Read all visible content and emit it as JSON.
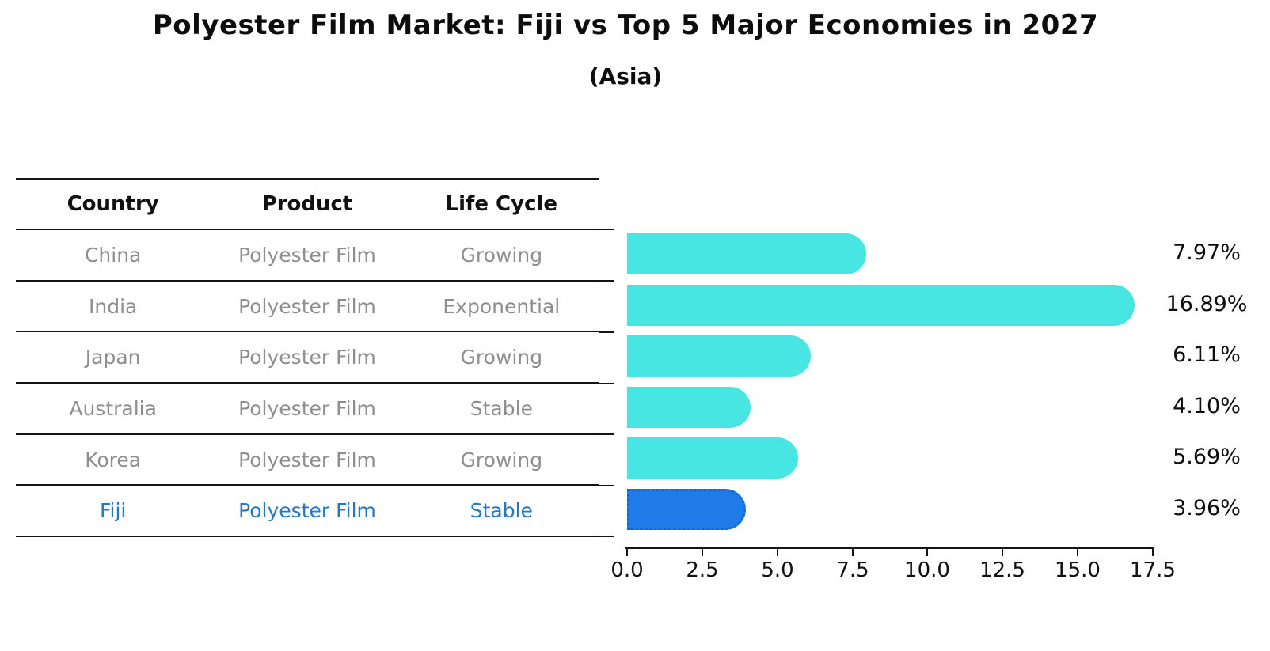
{
  "title": "Polyester Film Market: Fiji vs Top 5 Major Economies in 2027",
  "subtitle": "(Asia)",
  "table": {
    "headers": [
      "Country",
      "Product",
      "Life Cycle"
    ],
    "rows": [
      {
        "country": "China",
        "product": "Polyester Film",
        "life_cycle": "Growing"
      },
      {
        "country": "India",
        "product": "Polyester Film",
        "life_cycle": "Exponential"
      },
      {
        "country": "Japan",
        "product": "Polyester Film",
        "life_cycle": "Growing"
      },
      {
        "country": "Australia",
        "product": "Polyester Film",
        "life_cycle": "Stable"
      },
      {
        "country": "Korea",
        "product": "Polyester Film",
        "life_cycle": "Growing"
      },
      {
        "country": "Fiji",
        "product": "Polyester Film",
        "life_cycle": "Stable"
      }
    ],
    "highlight_row": "Fiji",
    "highlight_text_color": "#1f77d0"
  },
  "chart_data": {
    "type": "bar",
    "orientation": "horizontal",
    "title": "Polyester Film Market: Fiji vs Top 5 Major Economies in 2027",
    "subtitle": "(Asia)",
    "categories": [
      "China",
      "India",
      "Japan",
      "Australia",
      "Korea",
      "Fiji"
    ],
    "values": [
      7.97,
      16.89,
      6.11,
      4.1,
      5.69,
      3.96
    ],
    "value_labels": [
      "7.97%",
      "16.89%",
      "6.11%",
      "4.10%",
      "5.69%",
      "3.96%"
    ],
    "xlim": [
      0,
      17.5
    ],
    "x_ticks": [
      "0.0",
      "2.5",
      "5.0",
      "7.5",
      "10.0",
      "12.5",
      "15.0",
      "17.5"
    ],
    "grid": false,
    "legend": false,
    "bar_color": "#47e6e2",
    "highlight_index": 5,
    "highlight_color": "#1e7be8",
    "highlight_border_color": "#1565d8"
  }
}
